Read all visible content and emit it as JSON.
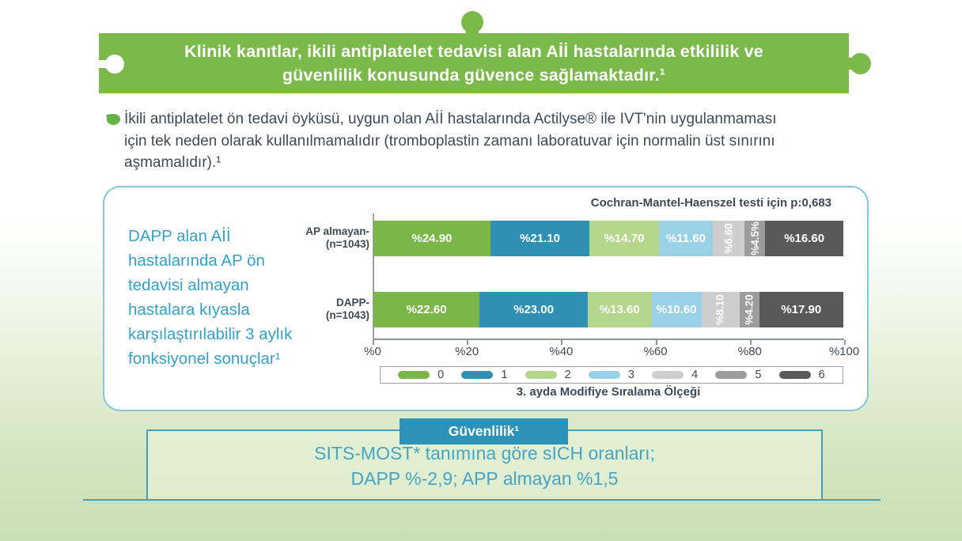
{
  "banner": {
    "color": "#7bb94b",
    "lines": [
      "Klinik kanıtlar, ikili antiplatelet tedavisi alan Aİİ hastalarında etkililik ve",
      "güvenlilik konusunda güvence sağlamaktadır.¹"
    ]
  },
  "intro": {
    "lines": [
      "İkili antiplatelet ön tedavi öyküsü, uygun olan Aİİ hastalarında Actilyse® ile IVT'nin uygulanmaması",
      "için tek neden olarak kullanılmamalıdır (tromboplastin zamanı laboratuvar için normalin üst sınırını",
      "aşmamalıdır).¹"
    ]
  },
  "chart_panel": {
    "annotation_lines": [
      "DAPP alan Aİİ",
      "hastalarında AP ön",
      "tedavisi almayan",
      "hastalara kıyasla",
      "karşılaştırılabilir 3 aylık",
      "fonksiyonel sonuçlar¹"
    ],
    "annotation_color": "#35a0c9"
  },
  "chart_data": {
    "type": "bar",
    "stacked": true,
    "orientation": "horizontal",
    "title": "Cochran-Mantel-Haenszel testi için p:0,683",
    "xlabel": "3. ayda Modifiye Sıralama Ölçeği",
    "xlim": [
      0,
      100
    ],
    "x_ticks": [
      "%0",
      "%20",
      "%40",
      "%60",
      "%80",
      "%100"
    ],
    "grid": false,
    "legend_position": "bottom",
    "categories": [
      {
        "line1": "AP almayan-",
        "line2": "(n=1043)"
      },
      {
        "line1": "DAPP-",
        "line2": "(n=1043)"
      }
    ],
    "series": [
      {
        "name": "0",
        "color": "#7ab648",
        "values": [
          24.9,
          22.6
        ],
        "labels": [
          "%24.90",
          "%22.60"
        ]
      },
      {
        "name": "1",
        "color": "#2f90b4",
        "values": [
          21.1,
          23.0
        ],
        "labels": [
          "%21.10",
          "%23.00"
        ]
      },
      {
        "name": "2",
        "color": "#b4d78b",
        "values": [
          14.7,
          13.6
        ],
        "labels": [
          "%14.70",
          "%13.60"
        ]
      },
      {
        "name": "3",
        "color": "#9bd1e7",
        "values": [
          11.6,
          10.6
        ],
        "labels": [
          "%11.60",
          "%10.60"
        ]
      },
      {
        "name": "4",
        "color": "#cecece",
        "values": [
          6.6,
          8.1
        ],
        "labels": [
          "%6.60",
          "%8.10"
        ]
      },
      {
        "name": "5",
        "color": "#9c9c9c",
        "values": [
          4.5,
          4.2
        ],
        "labels": [
          "%4.5%",
          "%4.20"
        ]
      },
      {
        "name": "6",
        "color": "#595959",
        "values": [
          16.6,
          17.9
        ],
        "labels": [
          "%16.60",
          "%17.90"
        ]
      }
    ]
  },
  "safety": {
    "button_label": "Güvenlilik¹",
    "button_color": "#2c92b7",
    "lines": [
      "SITS-MOST* tanımına göre sICH oranları;",
      "DAPP %-2,9; APP almayan %1,5"
    ]
  }
}
